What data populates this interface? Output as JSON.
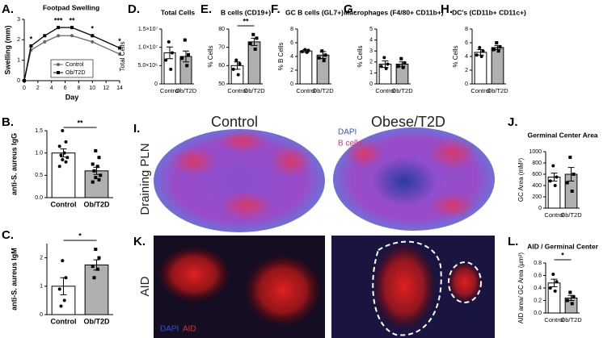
{
  "chart_data": [
    {
      "type": "line",
      "panel": "A.",
      "title": "Footpad Swelling",
      "xlabel": "Day",
      "ylabel": "Swelling (mm)",
      "x": [
        0,
        1,
        3,
        5,
        7,
        10,
        14
      ],
      "series": [
        {
          "name": "Control",
          "color": "#666666",
          "marker": "circle",
          "values": [
            0,
            1.5,
            1.9,
            2.2,
            2.2,
            1.9,
            1.3
          ]
        },
        {
          "name": "Ob/T2D",
          "color": "#000000",
          "marker": "square",
          "values": [
            0,
            1.7,
            2.2,
            2.6,
            2.6,
            2.2,
            1.6
          ]
        }
      ],
      "annotations": [
        {
          "x": 1,
          "text": "*"
        },
        {
          "x": 5,
          "text": "***"
        },
        {
          "x": 7,
          "text": "**"
        },
        {
          "x": 10,
          "text": "*"
        },
        {
          "x": 14,
          "text": "*"
        }
      ],
      "xlim": [
        0,
        14
      ],
      "xticks": [
        0,
        2,
        4,
        6,
        8,
        10,
        12,
        14
      ],
      "ylim": [
        0,
        3
      ],
      "yticks": [
        0,
        1,
        2,
        3
      ],
      "legend": "lower center"
    },
    {
      "type": "bar",
      "panel": "B.",
      "ylabel": "anti-S. aureus IgG",
      "categories": [
        "Control",
        "Ob/T2D"
      ],
      "values": [
        1.0,
        0.6
      ],
      "errors": [
        0.09,
        0.08
      ],
      "colors": [
        "#ffffff",
        "#b0b0b0"
      ],
      "markers": [
        "circle",
        "square"
      ],
      "points": [
        [
          1.5,
          1.25,
          1.15,
          1.0,
          0.95,
          0.9,
          0.85,
          0.8,
          0.7
        ],
        [
          1.05,
          0.9,
          0.75,
          0.7,
          0.6,
          0.5,
          0.45,
          0.4,
          0.35
        ]
      ],
      "significance": "**",
      "ylim": [
        0,
        1.5
      ],
      "yticks": [
        {
          "value": 0,
          "label": "0.0"
        },
        {
          "value": 0.5,
          "label": "0.5"
        },
        {
          "value": 1,
          "label": "1.0"
        },
        {
          "value": 1.5,
          "label": "1.5"
        }
      ]
    },
    {
      "type": "bar",
      "panel": "C.",
      "ylabel": "anti-S. aureus IgM",
      "categories": [
        "Control",
        "Ob/T2D"
      ],
      "values": [
        1.0,
        1.75
      ],
      "errors": [
        0.3,
        0.18
      ],
      "colors": [
        "#ffffff",
        "#b0b0b0"
      ],
      "markers": [
        "circle",
        "square"
      ],
      "points": [
        [
          1.9,
          1.3,
          0.9,
          0.5,
          0.3
        ],
        [
          2.3,
          2.0,
          1.7,
          1.6,
          1.3
        ]
      ],
      "significance": "*",
      "ylim": [
        0,
        2.5
      ],
      "yticks": [
        0,
        1,
        2
      ]
    },
    {
      "type": "bar",
      "panel": "D.",
      "title": "Total Cells",
      "ylabel": "Total Cells",
      "categories": [
        "Control",
        "Ob/T2D"
      ],
      "values": [
        8500000,
        7500000
      ],
      "errors": [
        1600000,
        1500000
      ],
      "colors": [
        "#ffffff",
        "#b0b0b0"
      ],
      "markers": [
        "circle",
        "square"
      ],
      "points": [
        [
          11500000,
          8500000,
          6500000,
          4000000
        ],
        [
          12000000,
          8000000,
          7000000,
          5000000
        ]
      ],
      "ylim": [
        0,
        15000000
      ],
      "yticks": [
        0,
        {
          "value": 5000000,
          "label": "5.0×10⁶"
        },
        {
          "value": 10000000,
          "label": "1.0×10⁷"
        },
        {
          "value": 15000000,
          "label": "1.5×10⁷"
        }
      ]
    },
    {
      "type": "bar",
      "panel": "E.",
      "title": "B cells (CD19+)",
      "ylabel": "% Cells",
      "categories": [
        "Control",
        "Ob/T2D"
      ],
      "values": [
        60,
        73
      ],
      "errors": [
        2,
        2
      ],
      "colors": [
        "#ffffff",
        "#b0b0b0"
      ],
      "markers": [
        "circle",
        "square"
      ],
      "points": [
        [
          63,
          61,
          58,
          55
        ],
        [
          77,
          75,
          72,
          69
        ]
      ],
      "significance": "**",
      "ylim": [
        50,
        80
      ],
      "yticks": [
        50,
        60,
        70,
        80
      ]
    },
    {
      "type": "bar",
      "panel": "F.",
      "title": "GC B cells (GL7+)",
      "ylabel": "% B Cells",
      "categories": [
        "Control",
        "Ob/T2D"
      ],
      "values": [
        4.8,
        4.2
      ],
      "errors": [
        0.2,
        0.5
      ],
      "colors": [
        "#ffffff",
        "#b0b0b0"
      ],
      "markers": [
        "circle",
        "square"
      ],
      "points": [
        [
          5.0,
          4.9,
          4.7,
          4.6
        ],
        [
          4.8,
          4.2,
          3.8,
          3.4
        ]
      ],
      "ylim": [
        0,
        8
      ],
      "yticks": [
        0,
        2,
        4,
        6,
        8
      ]
    },
    {
      "type": "bar",
      "panel": "G.",
      "title": "Macrophages (F4/80+ CD11b+)",
      "ylabel": "% Cells",
      "categories": [
        "Control",
        "Ob/T2D"
      ],
      "values": [
        1.8,
        1.8
      ],
      "errors": [
        0.3,
        0.2
      ],
      "colors": [
        "#ffffff",
        "#b0b0b0"
      ],
      "markers": [
        "circle",
        "square"
      ],
      "points": [
        [
          2.4,
          1.8,
          1.6,
          1.4
        ],
        [
          2.3,
          1.9,
          1.6,
          1.5
        ]
      ],
      "ylim": [
        0,
        5
      ],
      "yticks": [
        0,
        1,
        2,
        3,
        4,
        5
      ]
    },
    {
      "type": "bar",
      "panel": "H.",
      "title": "DC's (CD11b+ CD11c+)",
      "ylabel": "% Cells",
      "categories": [
        "Control",
        "Ob/T2D"
      ],
      "values": [
        4.6,
        5.3
      ],
      "errors": [
        0.4,
        0.3
      ],
      "colors": [
        "#ffffff",
        "#b0b0b0"
      ],
      "markers": [
        "circle",
        "square"
      ],
      "points": [
        [
          5.3,
          4.8,
          4.2,
          4.0
        ],
        [
          6.0,
          5.4,
          5.0,
          4.8
        ]
      ],
      "ylim": [
        0,
        8
      ],
      "yticks": [
        0,
        2,
        4,
        6,
        8
      ]
    },
    {
      "type": "bar",
      "panel": "J.",
      "title": "Germinal Center Area",
      "ylabel": "GC Area (mM²)",
      "categories": [
        "Control",
        "Ob/T2D"
      ],
      "values": [
        550,
        600
      ],
      "errors": [
        70,
        120
      ],
      "colors": [
        "#ffffff",
        "#b0b0b0"
      ],
      "markers": [
        "circle",
        "square"
      ],
      "points": [
        [
          750,
          550,
          480,
          400
        ],
        [
          900,
          600,
          450,
          300
        ]
      ],
      "ylim": [
        0,
        1000
      ],
      "yticks": [
        0,
        200,
        400,
        600,
        800,
        1000
      ]
    },
    {
      "type": "bar",
      "panel": "L.",
      "title": "AID / Germinal Center",
      "ylabel": "AID area/ GC Area (μm²)",
      "categories": [
        "Control",
        "Ob/T2D"
      ],
      "values": [
        0.48,
        0.24
      ],
      "errors": [
        0.06,
        0.04
      ],
      "colors": [
        "#ffffff",
        "#b0b0b0"
      ],
      "markers": [
        "circle",
        "square"
      ],
      "points": [
        [
          0.62,
          0.5,
          0.4,
          0.35
        ],
        [
          0.33,
          0.26,
          0.2,
          0.15
        ]
      ],
      "significance": "*",
      "ylim": [
        0,
        0.8
      ],
      "yticks": [
        {
          "value": 0,
          "label": "0.0"
        },
        {
          "value": 0.2,
          "label": "0.2"
        },
        {
          "value": 0.4,
          "label": "0.4"
        },
        {
          "value": 0.6,
          "label": "0.6"
        },
        {
          "value": 0.8,
          "label": "0.8"
        }
      ]
    }
  ],
  "micrographs": {
    "row1": {
      "panel": "I.",
      "row_label": "Draining PLN",
      "left_title": "Control",
      "right_title": "Obese/T2D",
      "legend": [
        "DAPI",
        "B cells"
      ]
    },
    "row2": {
      "panel": "K.",
      "row_label": "AID",
      "legend": [
        "DAPI",
        "AID"
      ]
    }
  }
}
